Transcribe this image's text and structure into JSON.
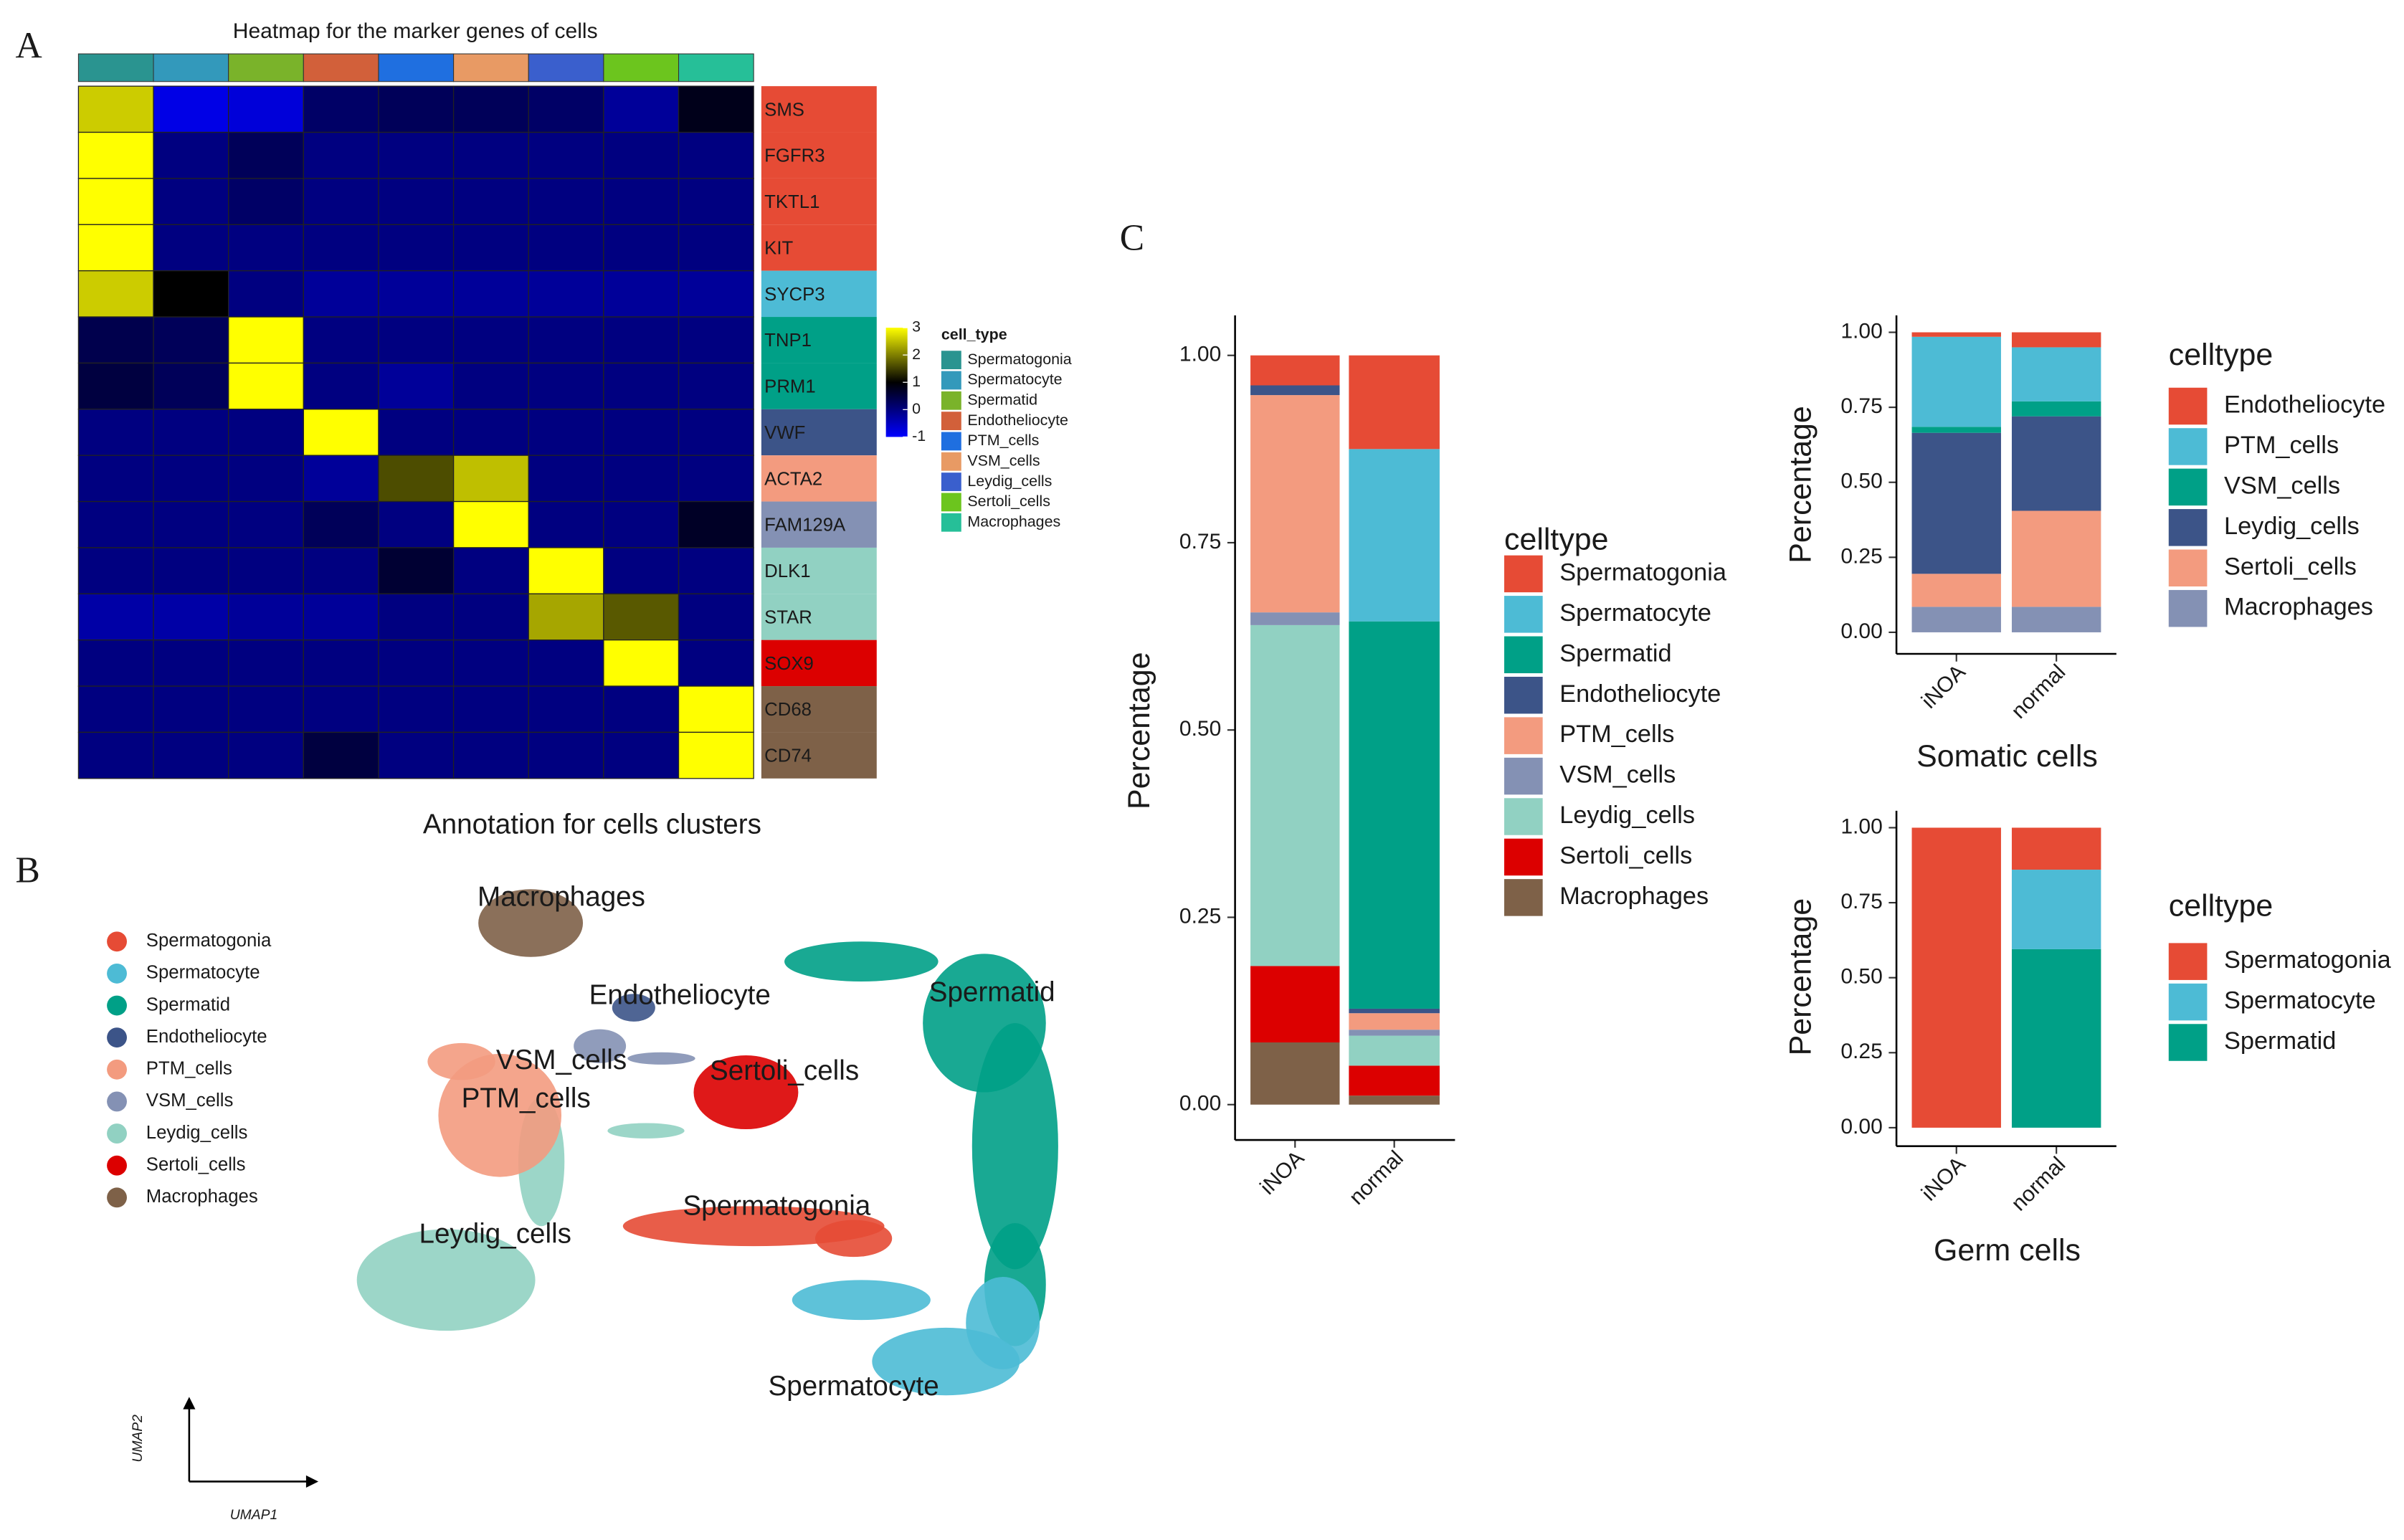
{
  "panel_labels": [
    "A",
    "B",
    "C"
  ],
  "chart_data": [
    {
      "type": "heatmap",
      "title": "Heatmap for the marker genes of cells",
      "x_title": "Annotation for cells clusters",
      "column_annotation": {
        "name": "cell_type",
        "categories": [
          "Spermatogonia",
          "Spermatocyte",
          "Spermatid",
          "Endotheliocyte",
          "PTM_cells",
          "VSM_cells",
          "Leydig_cells",
          "Sertoli_cells",
          "Macrophages"
        ],
        "colors": [
          "#2a9490",
          "#3399bb",
          "#7ab32a",
          "#d2603a",
          "#1f6fe0",
          "#e89a64",
          "#3a5fcd",
          "#6cc51e",
          "#26bf98"
        ]
      },
      "rows": [
        "SMS",
        "FGFR3",
        "TKTL1",
        "KIT",
        "SYCP3",
        "TNP1",
        "PRM1",
        "VWF",
        "ACTA2",
        "FAM129A",
        "DLK1",
        "STAR",
        "SOX9",
        "CD68",
        "CD74"
      ],
      "row_colors": [
        "#e64b35",
        "#e64b35",
        "#e64b35",
        "#e64b35",
        "#4dbbd5",
        "#00a087",
        "#00a087",
        "#3c5488",
        "#f39b7f",
        "#8491b4",
        "#91d1c2",
        "#91d1c2",
        "#dc0000",
        "#7e6148",
        "#7e6148"
      ],
      "values": [
        [
          2.6,
          -0.8,
          -0.7,
          0.2,
          0.3,
          0.3,
          0.2,
          -0.2,
          0.8
        ],
        [
          3,
          0,
          0.3,
          0,
          0,
          0,
          0,
          0,
          0
        ],
        [
          3,
          0,
          0.2,
          0,
          0,
          0,
          0,
          0,
          0
        ],
        [
          3,
          0,
          0,
          0,
          0,
          0,
          0,
          0,
          0
        ],
        [
          2.6,
          1,
          0,
          -0.2,
          -0.2,
          -0.2,
          -0.2,
          -0.2,
          -0.2
        ],
        [
          0.4,
          0.3,
          3,
          0,
          0,
          0,
          0,
          0,
          0
        ],
        [
          0.5,
          0.3,
          3,
          0,
          -0.2,
          0,
          0,
          0,
          0
        ],
        [
          0,
          0,
          0,
          3,
          0,
          0,
          0,
          0,
          0
        ],
        [
          0,
          0,
          0,
          -0.2,
          1.6,
          2.5,
          0,
          0,
          0
        ],
        [
          0,
          0,
          0,
          0.3,
          0,
          3,
          0,
          0,
          0.7
        ],
        [
          0,
          0,
          0,
          0,
          0.6,
          0,
          3,
          0,
          0
        ],
        [
          -0.3,
          -0.3,
          -0.2,
          -0.2,
          0,
          0,
          2.3,
          1.7,
          0
        ],
        [
          0,
          0,
          0,
          0,
          0,
          0,
          0,
          3,
          0
        ],
        [
          0,
          0,
          0,
          0,
          0,
          0,
          0,
          0,
          3
        ],
        [
          0,
          0,
          0,
          0.5,
          0,
          0,
          0,
          0,
          3
        ]
      ],
      "colorbar": {
        "lim": [
          -1,
          3
        ],
        "ticks": [
          3,
          2,
          1,
          0,
          -1
        ],
        "colors": [
          "#0000ff",
          "#000000",
          "#ffff00"
        ]
      }
    },
    {
      "type": "umap",
      "x_label": "UMAP1",
      "y_label": "UMAP2",
      "categories": [
        "Spermatogonia",
        "Spermatocyte",
        "Spermatid",
        "Endotheliocyte",
        "PTM_cells",
        "VSM_cells",
        "Leydig_cells",
        "Sertoli_cells",
        "Macrophages"
      ],
      "colors": [
        "#e64b35",
        "#4dbbd5",
        "#00a087",
        "#3c5488",
        "#f39b7f",
        "#8491b4",
        "#91d1c2",
        "#dc0000",
        "#7e6148"
      ]
    },
    {
      "type": "stacked_bar",
      "y_label": "Percentage",
      "legend_title": "celltype",
      "categories": [
        "iNOA",
        "normal"
      ],
      "ylim": [
        0,
        1
      ],
      "yticks": [
        {
          "value": 0,
          "label": "0.00"
        },
        {
          "value": 0.25,
          "label": "0.25"
        },
        {
          "value": 0.5,
          "label": "0.50"
        },
        {
          "value": 0.75,
          "label": "0.75"
        },
        {
          "value": 1,
          "label": "1.00"
        }
      ],
      "series": [
        {
          "name": "Spermatogonia",
          "color": "#e64b35",
          "values": [
            0.04,
            0.125
          ]
        },
        {
          "name": "Spermatocyte",
          "color": "#4dbbd5",
          "values": [
            0,
            0.23
          ]
        },
        {
          "name": "Spermatid",
          "color": "#00a087",
          "values": [
            0,
            0.517
          ]
        },
        {
          "name": "Endotheliocyte",
          "color": "#3c5488",
          "values": [
            0.013,
            0.006
          ]
        },
        {
          "name": "PTM_cells",
          "color": "#f39b7f",
          "values": [
            0.29,
            0.022
          ]
        },
        {
          "name": "VSM_cells",
          "color": "#8491b4",
          "values": [
            0.017,
            0.008
          ]
        },
        {
          "name": "Leydig_cells",
          "color": "#91d1c2",
          "values": [
            0.455,
            0.04
          ]
        },
        {
          "name": "Sertoli_cells",
          "color": "#dc0000",
          "values": [
            0.102,
            0.04
          ]
        },
        {
          "name": "Macrophages",
          "color": "#7e6148",
          "values": [
            0.083,
            0.012
          ]
        }
      ]
    },
    {
      "type": "stacked_bar",
      "y_label": "Percentage",
      "x_label": "Somatic cells",
      "legend_title": "celltype",
      "categories": [
        "iNOA",
        "normal"
      ],
      "ylim": [
        0,
        1
      ],
      "yticks": [
        {
          "value": 0,
          "label": "0.00"
        },
        {
          "value": 0.25,
          "label": "0.25"
        },
        {
          "value": 0.5,
          "label": "0.50"
        },
        {
          "value": 0.75,
          "label": "0.75"
        },
        {
          "value": 1,
          "label": "1.00"
        }
      ],
      "series": [
        {
          "name": "Endotheliocyte",
          "color": "#e64b35",
          "values": [
            0.015,
            0.05
          ]
        },
        {
          "name": "PTM_cells",
          "color": "#4dbbd5",
          "values": [
            0.3,
            0.18
          ]
        },
        {
          "name": "VSM_cells",
          "color": "#00a087",
          "values": [
            0.02,
            0.05
          ]
        },
        {
          "name": "Leydig_cells",
          "color": "#3c5488",
          "values": [
            0.47,
            0.315
          ]
        },
        {
          "name": "Sertoli_cells",
          "color": "#f39b7f",
          "values": [
            0.11,
            0.32
          ]
        },
        {
          "name": "Macrophages",
          "color": "#8491b4",
          "values": [
            0.085,
            0.085
          ]
        }
      ]
    },
    {
      "type": "stacked_bar",
      "y_label": "Percentage",
      "x_label": "Germ cells",
      "legend_title": "celltype",
      "categories": [
        "iNOA",
        "normal"
      ],
      "ylim": [
        0,
        1
      ],
      "yticks": [
        {
          "value": 0,
          "label": "0.00"
        },
        {
          "value": 0.25,
          "label": "0.25"
        },
        {
          "value": 0.5,
          "label": "0.50"
        },
        {
          "value": 0.75,
          "label": "0.75"
        },
        {
          "value": 1,
          "label": "1.00"
        }
      ],
      "series": [
        {
          "name": "Spermatogonia",
          "color": "#e64b35",
          "values": [
            1,
            0.14
          ]
        },
        {
          "name": "Spermatocyte",
          "color": "#4dbbd5",
          "values": [
            0,
            0.265
          ]
        },
        {
          "name": "Spermatid",
          "color": "#00a087",
          "values": [
            0,
            0.595
          ]
        }
      ]
    }
  ]
}
